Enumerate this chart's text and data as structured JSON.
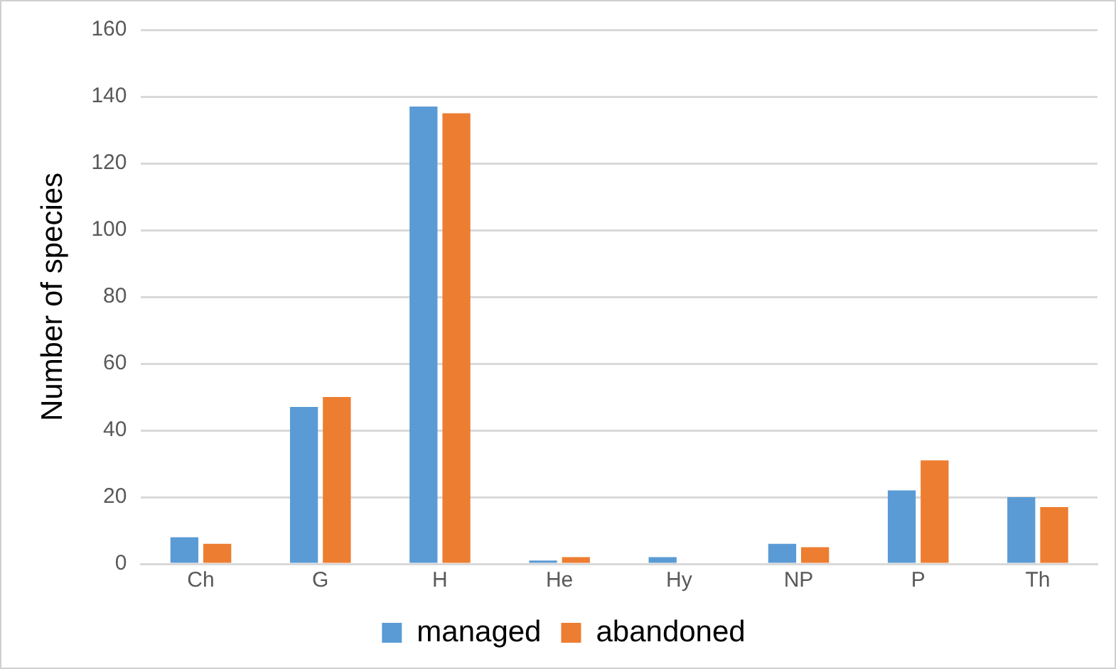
{
  "chart_data": {
    "type": "bar",
    "ylabel": "Number of species",
    "categories": [
      "Ch",
      "G",
      "H",
      "He",
      "Hy",
      "NP",
      "P",
      "Th"
    ],
    "series": [
      {
        "name": "managed",
        "color": "#5b9bd5",
        "values": [
          8,
          47,
          137,
          1,
          2,
          6,
          22,
          20
        ]
      },
      {
        "name": "abandoned",
        "color": "#ed7d31",
        "values": [
          6,
          50,
          135,
          2,
          0,
          5,
          31,
          17
        ]
      }
    ],
    "ylim": [
      0,
      160
    ],
    "yticks": [
      0,
      20,
      40,
      60,
      80,
      100,
      120,
      140,
      160
    ],
    "grid": "y",
    "legend": "bottom"
  }
}
